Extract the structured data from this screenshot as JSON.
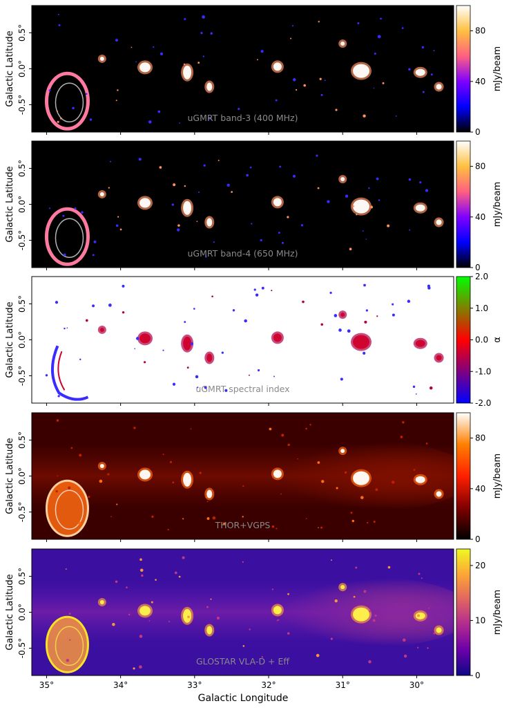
{
  "chart_data": {
    "type": "heatmap",
    "xlabel": "Galactic Longitude",
    "ylabel": "Galactic Latitude",
    "xlim": [
      35.2,
      29.5
    ],
    "ylim": [
      -0.88,
      0.88
    ],
    "xticks": [
      35,
      34,
      33,
      32,
      31,
      30
    ],
    "xtick_labels": [
      "35°",
      "34°",
      "33°",
      "32°",
      "31°",
      "30°"
    ],
    "yticks": [
      0.5,
      0.0,
      -0.5
    ],
    "ytick_labels": [
      "0.5°",
      "0.0°",
      "-0.5°"
    ],
    "panels": [
      {
        "label": "uGMRT band-3 (400 MHz)",
        "colormap": "gnuplot2",
        "background": "#000000",
        "cbar_label": "mJy/beam",
        "clim": [
          0,
          100
        ],
        "cbar_ticks": [
          0,
          40,
          80
        ],
        "cbar_tick_labels": [
          "0",
          "40",
          "80"
        ]
      },
      {
        "label": "uGMRT band-4 (650 MHz)",
        "colormap": "gnuplot2",
        "background": "#000000",
        "cbar_label": "mJy/beam",
        "clim": [
          0,
          100
        ],
        "cbar_ticks": [
          0,
          40,
          80
        ],
        "cbar_tick_labels": [
          "0",
          "40",
          "80"
        ]
      },
      {
        "label": "uGMRT spectral index",
        "colormap": "brg",
        "background": "#ffffff",
        "cbar_label": "α",
        "clim": [
          -2.0,
          2.0
        ],
        "cbar_ticks": [
          -2.0,
          -1.0,
          0.0,
          1.0,
          2.0
        ],
        "cbar_tick_labels": [
          "-2.0",
          "-1.0",
          "0.0",
          "1.0",
          "2.0"
        ]
      },
      {
        "label": "THOR+VGPS",
        "colormap": "gist_heat",
        "background": "#3a0000",
        "cbar_label": "mJy/beam",
        "clim": [
          0,
          100
        ],
        "cbar_ticks": [
          0,
          40,
          80
        ],
        "cbar_tick_labels": [
          "0",
          "40",
          "80"
        ]
      },
      {
        "label": "GLOSTAR VLA-D + Eff",
        "colormap": "plasma",
        "background": "#3b0fa0",
        "cbar_label": "mJy/beam",
        "clim": [
          0,
          23
        ],
        "cbar_ticks": [
          0,
          10,
          20
        ],
        "cbar_tick_labels": [
          "0",
          "10",
          "20"
        ]
      }
    ]
  }
}
